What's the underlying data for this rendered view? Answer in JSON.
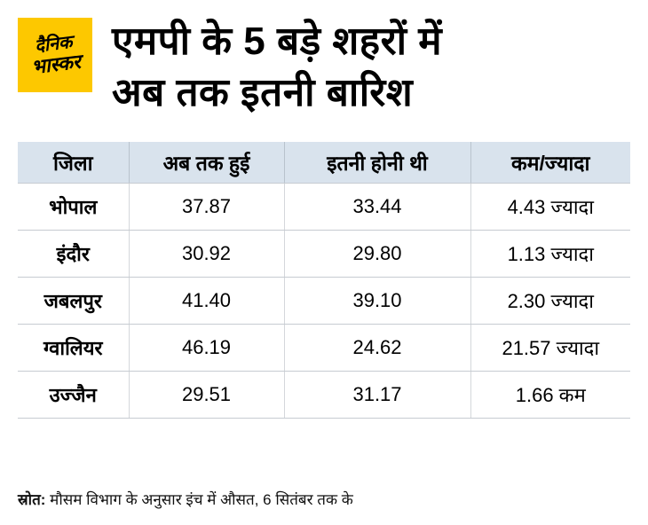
{
  "logo": {
    "line1": "दैनिक",
    "line2": "भास्कर",
    "bg_color": "#fdc800"
  },
  "title": {
    "line1": "एमपी के 5 बड़े शहरों में",
    "line2": "अब तक इतनी बारिश"
  },
  "chart_data": {
    "type": "table",
    "title": "एमपी के 5 बड़े शहरों में अब तक इतनी बारिश",
    "columns": [
      "जिला",
      "अब तक हुई",
      "इतनी होनी थी",
      "कम/ज्यादा"
    ],
    "rows": [
      [
        "भोपाल",
        "37.87",
        "33.44",
        "4.43 ज्यादा"
      ],
      [
        "इंदौर",
        "30.92",
        "29.80",
        "1.13 ज्यादा"
      ],
      [
        "जबलपुर",
        "41.40",
        "39.10",
        "2.30 ज्यादा"
      ],
      [
        "ग्वालियर",
        "46.19",
        "24.62",
        "21.57 ज्यादा"
      ],
      [
        "उज्जैन",
        "29.51",
        "31.17",
        "1.66 कम"
      ]
    ],
    "units_note": "मौसम विभाग के अनुसार इंच में औसत, 6 सितंबर तक के"
  },
  "source": {
    "label": "स्रोत:",
    "text": "मौसम विभाग के अनुसार इंच में औसत, 6 सितंबर तक के"
  },
  "colors": {
    "header_bg": "#d9e3ed",
    "row_border": "#c6cbd1",
    "logo_bg": "#fdc800"
  }
}
